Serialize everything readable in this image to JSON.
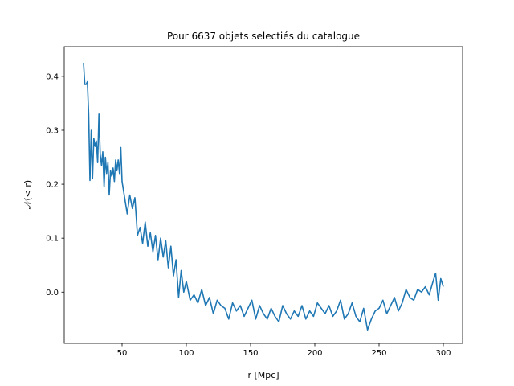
{
  "chart_data": {
    "type": "line",
    "title": "Pour 6637 objets selectiés du catalogue",
    "xlabel": "r [Mpc]",
    "ylabel": "𝒩(< r)",
    "xlim": [
      5,
      315
    ],
    "ylim": [
      -0.095,
      0.455
    ],
    "xticks": [
      50,
      100,
      150,
      200,
      250,
      300
    ],
    "yticks": [
      0.0,
      0.1,
      0.2,
      0.3,
      0.4
    ],
    "grid": false,
    "series": [
      {
        "color": "#1f77b4",
        "x": [
          20,
          21,
          22,
          23,
          24,
          25,
          26,
          27,
          28,
          29,
          30,
          31,
          32,
          33,
          34,
          35,
          36,
          37,
          38,
          39,
          40,
          41,
          42,
          43,
          44,
          45,
          46,
          47,
          48,
          49,
          50,
          52,
          54,
          56,
          58,
          60,
          62,
          64,
          66,
          68,
          70,
          72,
          74,
          76,
          78,
          80,
          82,
          84,
          86,
          88,
          90,
          92,
          94,
          96,
          98,
          100,
          103,
          106,
          109,
          112,
          115,
          118,
          121,
          124,
          127,
          130,
          133,
          136,
          139,
          142,
          145,
          148,
          151,
          154,
          157,
          160,
          163,
          166,
          169,
          172,
          175,
          178,
          181,
          184,
          187,
          190,
          193,
          196,
          199,
          202,
          205,
          208,
          211,
          214,
          217,
          220,
          223,
          226,
          229,
          232,
          235,
          238,
          241,
          244,
          247,
          250,
          253,
          256,
          259,
          262,
          265,
          268,
          271,
          274,
          277,
          280,
          283,
          286,
          289,
          292,
          294,
          296,
          298,
          300
        ],
        "y": [
          0.425,
          0.385,
          0.385,
          0.39,
          0.33,
          0.207,
          0.3,
          0.21,
          0.285,
          0.27,
          0.28,
          0.24,
          0.33,
          0.255,
          0.235,
          0.26,
          0.195,
          0.25,
          0.22,
          0.24,
          0.18,
          0.225,
          0.215,
          0.23,
          0.205,
          0.245,
          0.225,
          0.245,
          0.22,
          0.268,
          0.205,
          0.175,
          0.145,
          0.18,
          0.155,
          0.175,
          0.105,
          0.12,
          0.09,
          0.13,
          0.085,
          0.11,
          0.075,
          0.105,
          0.06,
          0.1,
          0.065,
          0.095,
          0.045,
          0.085,
          0.03,
          0.06,
          -0.01,
          0.04,
          0.0,
          0.02,
          -0.015,
          -0.005,
          -0.02,
          0.005,
          -0.025,
          -0.01,
          -0.04,
          -0.015,
          -0.025,
          -0.03,
          -0.05,
          -0.02,
          -0.035,
          -0.025,
          -0.045,
          -0.03,
          -0.015,
          -0.05,
          -0.025,
          -0.04,
          -0.05,
          -0.03,
          -0.045,
          -0.055,
          -0.025,
          -0.04,
          -0.05,
          -0.035,
          -0.045,
          -0.025,
          -0.05,
          -0.035,
          -0.045,
          -0.02,
          -0.03,
          -0.04,
          -0.025,
          -0.045,
          -0.035,
          -0.015,
          -0.05,
          -0.04,
          -0.02,
          -0.045,
          -0.055,
          -0.03,
          -0.07,
          -0.05,
          -0.035,
          -0.03,
          -0.015,
          -0.04,
          -0.025,
          -0.01,
          -0.035,
          -0.02,
          0.005,
          -0.01,
          -0.015,
          0.005,
          0.0,
          0.01,
          -0.005,
          0.02,
          0.035,
          -0.015,
          0.025,
          0.01
        ]
      }
    ]
  }
}
